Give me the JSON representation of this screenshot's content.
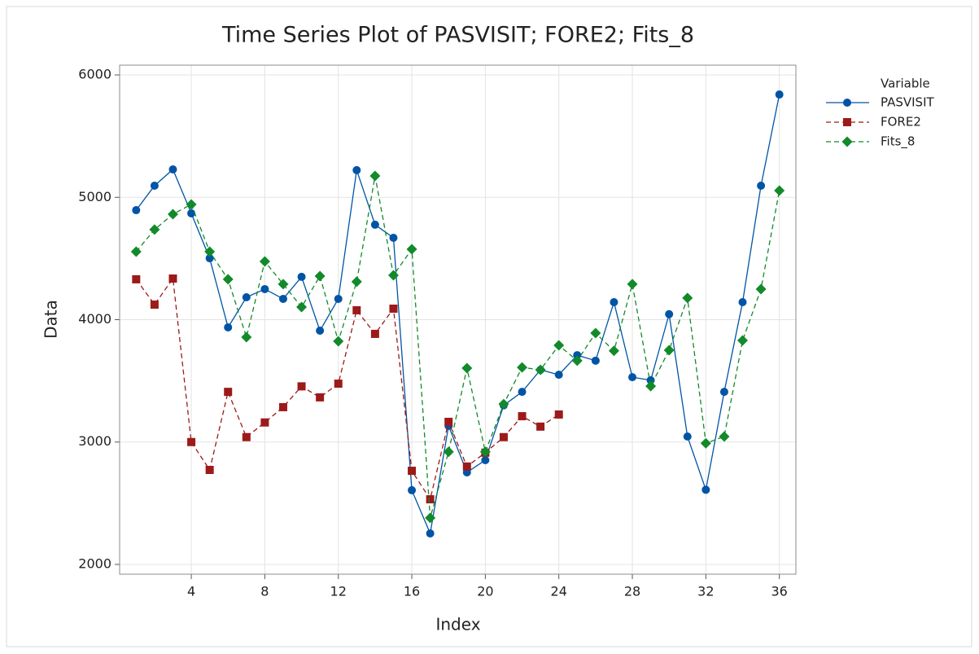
{
  "chart_data": {
    "type": "line",
    "title": "Time Series Plot of PASVISIT; FORE2; Fits_8",
    "x_label": "Index",
    "y_label": "Data",
    "legend_title": "Variable",
    "legend": "right",
    "x": [
      1,
      2,
      3,
      4,
      5,
      6,
      7,
      8,
      9,
      10,
      11,
      12,
      13,
      14,
      15,
      16,
      17,
      18,
      19,
      20,
      21,
      22,
      23,
      24,
      25,
      26,
      27,
      28,
      29,
      30,
      31,
      32,
      33,
      34,
      35,
      36
    ],
    "series": [
      {
        "name": "PASVISIT",
        "color": "#0054a6",
        "marker": "circle",
        "dash": "solid",
        "values": [
          4895,
          5095,
          5228,
          4869,
          4502,
          3937,
          4183,
          4250,
          4170,
          4350,
          3910,
          4170,
          5222,
          4776,
          4669,
          2606,
          2253,
          3132,
          2752,
          2852,
          3300,
          3410,
          3590,
          3550,
          3710,
          3665,
          4143,
          3530,
          3505,
          4045,
          3045,
          2610,
          3410,
          4143,
          5095,
          5840
        ]
      },
      {
        "name": "FORE2",
        "color": "#9c1a1a",
        "marker": "square",
        "dash": "dashed",
        "values": [
          4330,
          4123,
          4336,
          3000,
          2772,
          3410,
          3040,
          3160,
          3285,
          3455,
          3365,
          3477,
          4077,
          3884,
          4090,
          2765,
          2532,
          3165,
          2800,
          2913,
          3040,
          3211,
          3126,
          3225,
          null,
          null,
          null,
          null,
          null,
          null,
          null,
          null,
          null,
          null,
          null,
          null
        ]
      },
      {
        "name": "Fits_8",
        "color": "#128a2a",
        "marker": "diamond",
        "dash": "dashed",
        "values": [
          4556,
          4736,
          4862,
          4942,
          4556,
          4330,
          3857,
          4476,
          4290,
          4103,
          4356,
          3824,
          4310,
          5175,
          4363,
          4576,
          2380,
          2920,
          3604,
          2920,
          3310,
          3610,
          3590,
          3790,
          3665,
          3890,
          3745,
          4290,
          3457,
          3750,
          4177,
          2990,
          3045,
          3830,
          4250,
          5055
        ]
      }
    ],
    "xlim": [
      0.1,
      36.9
    ],
    "xticks": [
      4,
      8,
      12,
      16,
      20,
      24,
      28,
      32,
      36
    ],
    "ylim": [
      1920,
      6080
    ],
    "yticks": [
      2000,
      3000,
      4000,
      5000,
      6000
    ],
    "grid": true
  }
}
